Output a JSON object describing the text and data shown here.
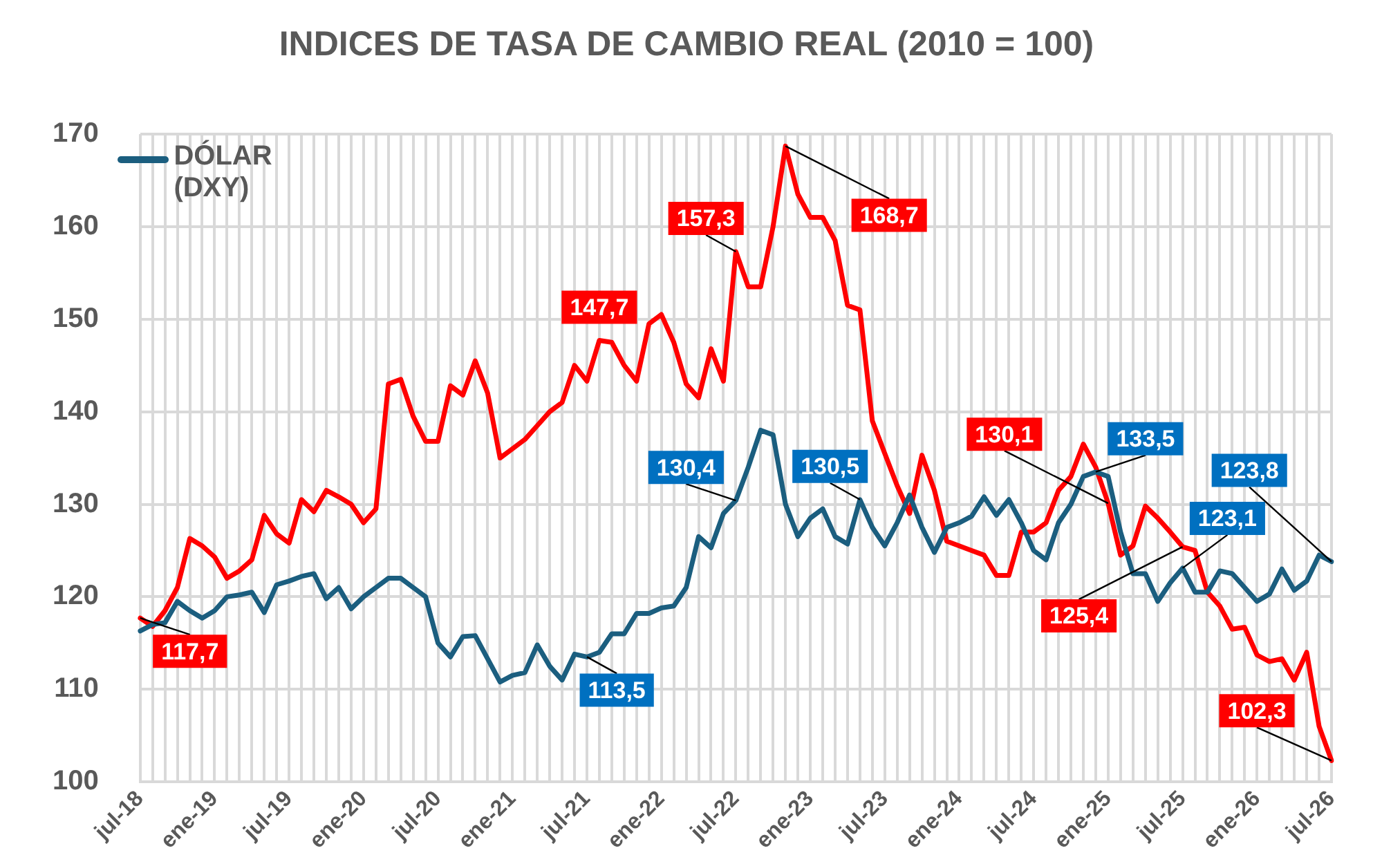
{
  "chart_data": {
    "type": "line",
    "title": "INDICES DE TASA DE CAMBIO REAL (2010 = 100)",
    "categories": [
      "jul-18",
      null,
      null,
      null,
      null,
      null,
      "ene-19",
      null,
      null,
      null,
      null,
      null,
      "jul-19",
      null,
      null,
      null,
      null,
      null,
      "ene-20",
      null,
      null,
      null,
      null,
      null,
      "jul-20",
      null,
      null,
      null,
      null,
      null,
      "ene-21",
      null,
      null,
      null,
      null,
      null,
      "jul-21",
      null,
      null,
      null,
      null,
      null,
      "ene-22",
      null,
      null,
      null,
      null,
      null,
      "jul-22",
      null,
      null,
      null,
      null,
      null,
      "ene-23",
      null,
      null,
      null,
      null,
      null,
      "jul-23",
      null,
      null,
      null,
      null,
      null,
      "ene-24",
      null,
      null,
      null,
      null,
      null,
      "jul-24",
      null,
      null,
      null,
      null,
      null,
      "ene-25",
      null,
      null,
      null,
      null,
      null,
      "jul-25",
      null,
      null,
      null,
      null,
      null,
      "ene-26",
      null,
      null,
      null,
      null,
      null,
      "jul-26"
    ],
    "series": [
      {
        "name": "DÓLAR (DXY)",
        "color": "#1b5e7f",
        "values": [
          116.3,
          117,
          117.2,
          119.5,
          118.5,
          117.7,
          118.5,
          120,
          120.2,
          120.5,
          118.3,
          121.3,
          121.7,
          122.2,
          122.5,
          119.8,
          121,
          118.7,
          120,
          121,
          122,
          122,
          121,
          120,
          115,
          113.5,
          115.7,
          115.8,
          113.3,
          110.8,
          111.5,
          111.8,
          114.8,
          112.5,
          111,
          113.8,
          113.5,
          114,
          116,
          116,
          118.2,
          118.2,
          118.8,
          119,
          121,
          126.5,
          125.3,
          129,
          130.4,
          134,
          138,
          137.5,
          130,
          126.5,
          128.5,
          129.5,
          126.5,
          125.7,
          130.5,
          127.5,
          125.5,
          128,
          131,
          127.5,
          124.8,
          127.5,
          128,
          128.7,
          130.8,
          128.8,
          130.5,
          128,
          125,
          124,
          128,
          130,
          133,
          133.5,
          133,
          127,
          122.5,
          122.5,
          119.5,
          121.5,
          123.1,
          120.5,
          120.5,
          122.8,
          122.5,
          121,
          119.5,
          120.3,
          123,
          120.7,
          121.7,
          124.5,
          123.8
        ],
        "value_labels": [
          null,
          null,
          null,
          null,
          null,
          null,
          null,
          null,
          null,
          null,
          null,
          null,
          null,
          null,
          null,
          null,
          null,
          null,
          null,
          null,
          null,
          null,
          null,
          null,
          null,
          null,
          null,
          null,
          null,
          null,
          null,
          null,
          null,
          null,
          null,
          null,
          "113,5",
          null,
          null,
          null,
          null,
          null,
          null,
          null,
          null,
          null,
          null,
          null,
          "130,4",
          null,
          null,
          null,
          null,
          null,
          null,
          null,
          null,
          null,
          "130,5",
          null,
          null,
          null,
          null,
          null,
          null,
          null,
          null,
          null,
          null,
          null,
          null,
          null,
          null,
          null,
          null,
          null,
          null,
          "133,5",
          null,
          null,
          null,
          null,
          null,
          null,
          "123,1",
          null,
          null,
          null,
          null,
          null,
          null,
          null,
          null,
          null,
          null,
          null,
          "123,8"
        ]
      },
      {
        "color": "#ff0000",
        "values": [
          117.7,
          116.8,
          118.5,
          121,
          126.3,
          125.5,
          124.3,
          122,
          122.8,
          124,
          128.8,
          126.8,
          125.8,
          130.5,
          129.2,
          131.5,
          130.8,
          130,
          128,
          129.5,
          143,
          143.5,
          139.5,
          136.8,
          136.8,
          142.8,
          141.8,
          145.5,
          142,
          135,
          136,
          137,
          138.5,
          140,
          141,
          145,
          143.3,
          147.7,
          147.5,
          145,
          143.3,
          149.5,
          150.5,
          147.5,
          143,
          141.5,
          146.8,
          143.3,
          157.3,
          153.5,
          153.5,
          160,
          168.7,
          163.5,
          161,
          161,
          158.5,
          151.5,
          151,
          139,
          135.5,
          132,
          129,
          135.3,
          131.5,
          126,
          125.5,
          125,
          124.5,
          122.3,
          122.3,
          127,
          127,
          128,
          131.5,
          133,
          136.5,
          134,
          130.1,
          124.5,
          125.5,
          129.8,
          128.5,
          127,
          125.4,
          125,
          120.5,
          119,
          116.5,
          116.7,
          113.7,
          113,
          113.3,
          111,
          114,
          106,
          102.3
        ],
        "value_labels": [
          "117,7",
          null,
          null,
          null,
          null,
          null,
          null,
          null,
          null,
          null,
          null,
          null,
          null,
          null,
          null,
          null,
          null,
          null,
          null,
          null,
          null,
          null,
          null,
          null,
          null,
          null,
          null,
          null,
          null,
          null,
          null,
          null,
          null,
          null,
          null,
          null,
          null,
          "147,7",
          null,
          null,
          null,
          null,
          null,
          null,
          null,
          null,
          null,
          null,
          "157,3",
          null,
          null,
          null,
          "168,7",
          null,
          null,
          null,
          null,
          null,
          null,
          null,
          null,
          null,
          null,
          null,
          null,
          null,
          null,
          null,
          null,
          null,
          null,
          null,
          null,
          null,
          null,
          null,
          null,
          null,
          "130,1",
          null,
          null,
          null,
          null,
          null,
          "125,4",
          null,
          null,
          null,
          null,
          null,
          null,
          null,
          null,
          null,
          null,
          null,
          "102,3"
        ]
      }
    ],
    "ylim": [
      100,
      170
    ],
    "yticks": [
      100,
      110,
      120,
      130,
      140,
      150,
      160,
      170
    ],
    "grid": true,
    "legend": "top left",
    "marker": "none",
    "line_style": "solid"
  }
}
